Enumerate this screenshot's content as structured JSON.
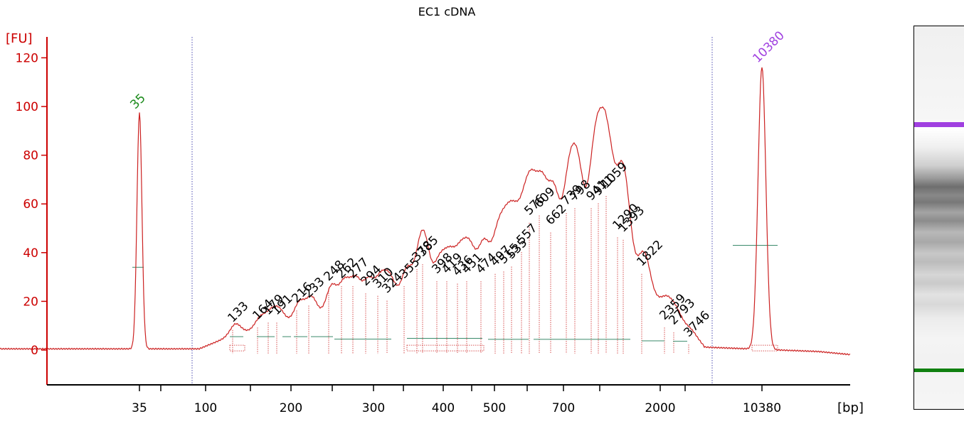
{
  "chart_data": {
    "type": "line",
    "title": "EC1 cDNA",
    "ylabel": "[FU]",
    "xlabel": "[bp]",
    "ylim": [
      -14,
      128
    ],
    "yticks": [
      0,
      20,
      40,
      60,
      80,
      100,
      120
    ],
    "xticks": [
      "35",
      "100",
      "200",
      "300",
      "400",
      "500",
      "700",
      "2000",
      "10380"
    ],
    "marker_peaks": [
      {
        "label": "35",
        "size_bp": 35,
        "height": 97,
        "color": "#1a8a1a"
      },
      {
        "label": "10380",
        "size_bp": 10380,
        "height": 116,
        "color": "#a040e0"
      }
    ],
    "peaks": [
      {
        "label": "133",
        "height": 10
      },
      {
        "label": "164",
        "height": 11
      },
      {
        "label": "179",
        "height": 13
      },
      {
        "label": "191",
        "height": 13
      },
      {
        "label": "216",
        "height": 18
      },
      {
        "label": "233",
        "height": 20
      },
      {
        "label": "248",
        "height": 27
      },
      {
        "label": "262",
        "height": 28
      },
      {
        "label": "277",
        "height": 28
      },
      {
        "label": "294",
        "height": 25
      },
      {
        "label": "310",
        "height": 24
      },
      {
        "label": "324",
        "height": 22
      },
      {
        "label": "355",
        "height": 28
      },
      {
        "label": "378",
        "height": 35
      },
      {
        "label": "385",
        "height": 37
      },
      {
        "label": "398",
        "height": 30
      },
      {
        "label": "419",
        "height": 30
      },
      {
        "label": "436",
        "height": 29
      },
      {
        "label": "451",
        "height": 30
      },
      {
        "label": "474",
        "height": 30
      },
      {
        "label": "497",
        "height": 33
      },
      {
        "label": "515",
        "height": 34
      },
      {
        "label": "535",
        "height": 36
      },
      {
        "label": "557",
        "height": 42
      },
      {
        "label": "576",
        "height": 54
      },
      {
        "label": "609",
        "height": 57
      },
      {
        "label": "662",
        "height": 50
      },
      {
        "label": "739",
        "height": 58
      },
      {
        "label": "798",
        "height": 60
      },
      {
        "label": "941",
        "height": 60
      },
      {
        "label": "971",
        "height": 62
      },
      {
        "label": "1059",
        "height": 65
      },
      {
        "label": "1290",
        "height": 48
      },
      {
        "label": "1393",
        "height": 47
      },
      {
        "label": "1822",
        "height": 33
      },
      {
        "label": "2359",
        "height": 11
      },
      {
        "label": "2793",
        "height": 9
      },
      {
        "label": "3746",
        "height": 4
      }
    ],
    "colors": {
      "trace": "#cc2222",
      "axis": "#cc0000",
      "baseline": "#3a8a6a",
      "marker_line": "#4a4ab0"
    }
  },
  "gel": {
    "upper_marker_color": "#a040e0",
    "lower_marker_color": "#108010"
  }
}
